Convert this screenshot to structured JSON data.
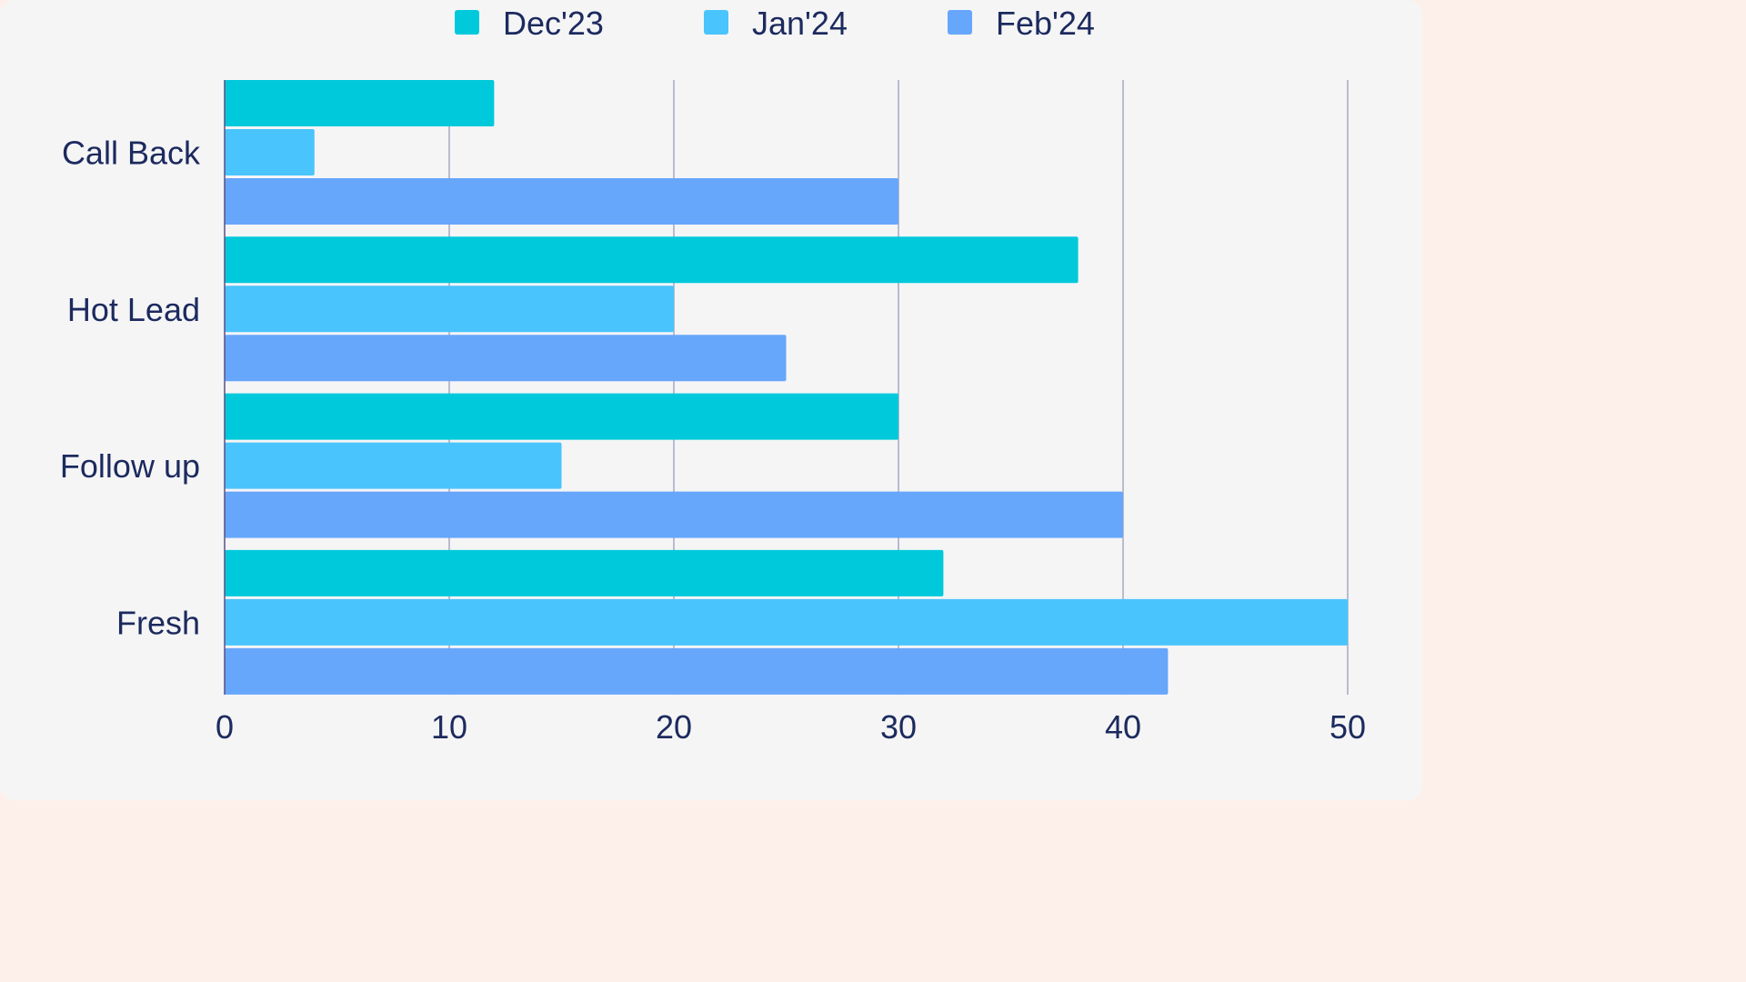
{
  "chart_data": {
    "type": "bar",
    "orientation": "horizontal",
    "categories": [
      "Call Back",
      "Hot Lead",
      "Follow up",
      "Fresh"
    ],
    "series": [
      {
        "name": "Dec'23",
        "color": "#00c9db",
        "values": [
          12,
          38,
          30,
          32
        ]
      },
      {
        "name": "Jan'24",
        "color": "#4ac4fd",
        "values": [
          4,
          20,
          15,
          50
        ]
      },
      {
        "name": "Feb'24",
        "color": "#66a6fb",
        "values": [
          30,
          25,
          40,
          42
        ]
      }
    ],
    "xlim": [
      0,
      50
    ],
    "xticks": [
      "0",
      "10",
      "20",
      "30",
      "40",
      "50"
    ],
    "grid": "vertical",
    "legend_position": "top-center",
    "title": "",
    "xlabel": "",
    "ylabel": ""
  }
}
